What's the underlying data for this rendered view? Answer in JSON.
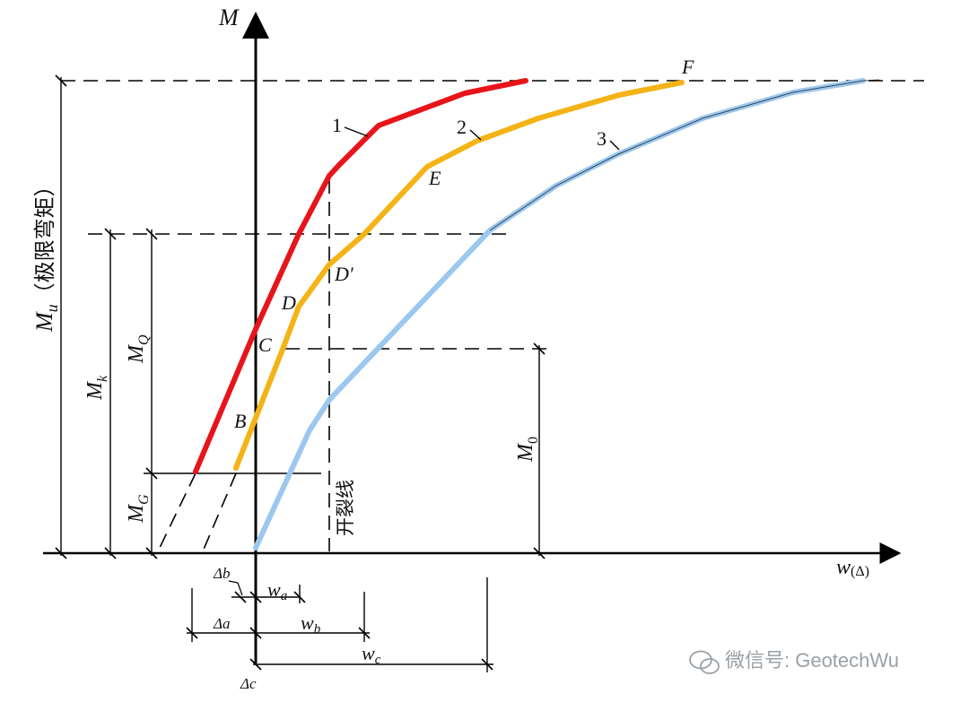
{
  "axes": {
    "y_label": "M",
    "x_label_main": "w",
    "x_label_paren": "(Δ)"
  },
  "levels": {
    "mu_main": "M",
    "mu_sub": "u",
    "mu_note": "（极限弯矩）",
    "mk_main": "M",
    "mk_sub": "k",
    "mq_main": "M",
    "mq_sub": "Q",
    "mg_main": "M",
    "mg_sub": "G",
    "m0_main": "M",
    "m0_sub": "0"
  },
  "cracking_line": "开裂线",
  "curves": [
    {
      "label": "1",
      "color": "#e8141b"
    },
    {
      "label": "2",
      "color": "#f4b316"
    },
    {
      "label": "3",
      "color": "#9cc8ef"
    }
  ],
  "points": {
    "B": "B",
    "C": "C",
    "D": "D",
    "D_prime": "D′",
    "E": "E",
    "F": "F"
  },
  "dimensions": {
    "delta_b": "Δb",
    "delta_a": "Δa",
    "delta_c": "Δc",
    "w_a_main": "w",
    "w_a_sub": "a",
    "w_b_main": "w",
    "w_b_sub": "b",
    "w_c_main": "w",
    "w_c_sub": "c"
  },
  "watermark": "微信号: GeotechWu"
}
